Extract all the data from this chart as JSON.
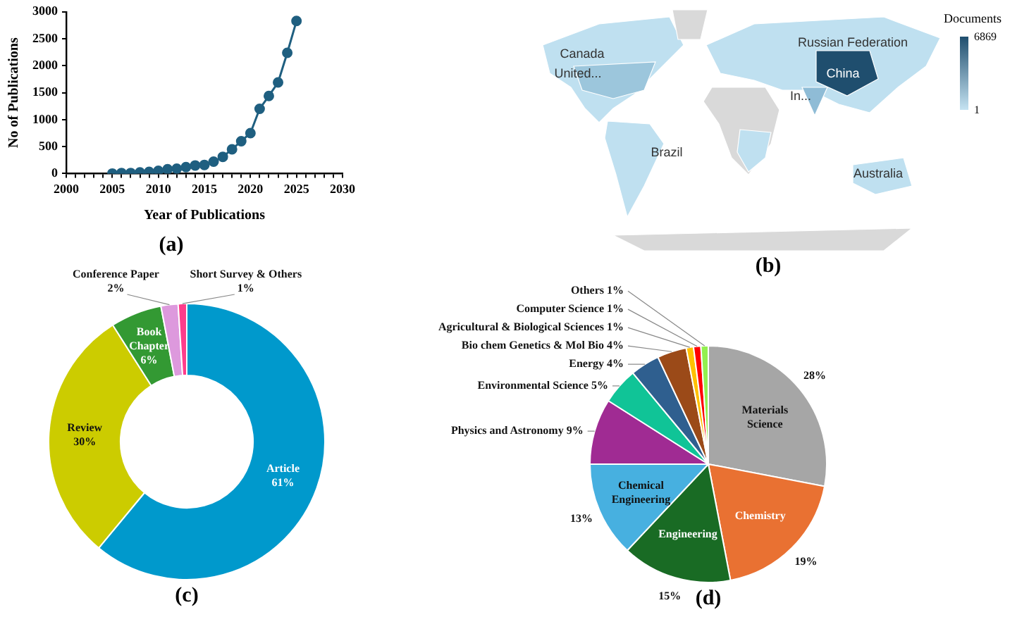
{
  "chart_data": [
    {
      "type": "line",
      "title": "(a)",
      "xlabel": "Year of Publications",
      "ylabel": "No of Publications",
      "x": [
        2005,
        2006,
        2007,
        2008,
        2009,
        2010,
        2011,
        2012,
        2013,
        2014,
        2015,
        2016,
        2017,
        2018,
        2019,
        2020,
        2021,
        2022,
        2023,
        2024,
        2025
      ],
      "series": [
        {
          "color": "#1f5f80",
          "values": [
            0,
            10,
            10,
            20,
            30,
            50,
            80,
            90,
            120,
            150,
            160,
            220,
            310,
            450,
            600,
            750,
            1200,
            1440,
            1690,
            2240,
            2830
          ]
        }
      ],
      "xlim": [
        2000,
        2030
      ],
      "xticks": [
        2000,
        {
          "value": 2001,
          "label": null
        },
        {
          "value": 2002,
          "label": null
        },
        {
          "value": 2003,
          "label": null
        },
        {
          "value": 2004,
          "label": null
        },
        2005,
        {
          "value": 2006,
          "label": null
        },
        {
          "value": 2007,
          "label": null
        },
        {
          "value": 2008,
          "label": null
        },
        {
          "value": 2009,
          "label": null
        },
        2010,
        {
          "value": 2011,
          "label": null
        },
        {
          "value": 2012,
          "label": null
        },
        {
          "value": 2013,
          "label": null
        },
        {
          "value": 2014,
          "label": null
        },
        2015,
        {
          "value": 2016,
          "label": null
        },
        {
          "value": 2017,
          "label": null
        },
        {
          "value": 2018,
          "label": null
        },
        {
          "value": 2019,
          "label": null
        },
        2020,
        {
          "value": 2021,
          "label": null
        },
        {
          "value": 2022,
          "label": null
        },
        {
          "value": 2023,
          "label": null
        },
        {
          "value": 2024,
          "label": null
        },
        2025,
        {
          "value": 2026,
          "label": null
        },
        {
          "value": 2027,
          "label": null
        },
        {
          "value": 2028,
          "label": null
        },
        {
          "value": 2029,
          "label": null
        },
        2030
      ],
      "ylim": [
        0,
        3000
      ],
      "yticks": [
        0,
        500,
        1000,
        1500,
        2000,
        2500,
        3000
      ],
      "marker": "circle",
      "line_style": "solid"
    },
    {
      "type": "other",
      "title": "(b)",
      "legend_title": "Documents",
      "annotations": [
        "Russian Federation",
        "Canada",
        "United...",
        "China",
        "In...",
        "Brazil",
        "Australia",
        "6869",
        "1"
      ]
    },
    {
      "type": "donut",
      "title": "(c)",
      "categories": [
        "Article",
        "Review",
        "Book Chapter",
        "Conference Paper",
        "Short Survey & Others"
      ],
      "values": [
        61,
        30,
        6,
        2,
        1
      ],
      "colors": [
        "#0099cc",
        "#cccc00",
        "#339933",
        "#dd99dd",
        "#ff3d8b"
      ],
      "value_labels": [
        "61%",
        "30%",
        "6%",
        "2%",
        "1%"
      ]
    },
    {
      "type": "pie",
      "title": "(d)",
      "categories": [
        "Materials Science",
        "Chemistry",
        "Engineering",
        "Chemical Engineering",
        "Physics and Astronomy",
        "Environmental Science",
        "Energy",
        "Bio chem Genetics & Mol Bio",
        "Agricultural & Biological Sciences",
        "Computer Science",
        "Others"
      ],
      "values": [
        28,
        19,
        15,
        13,
        9,
        5,
        4,
        4,
        1,
        1,
        1
      ],
      "colors": [
        "#a6a6a6",
        "#e97132",
        "#196b24",
        "#47b0e0",
        "#a02b93",
        "#10c497",
        "#2f5f8f",
        "#9b4a18",
        "#ffc000",
        "#ff0000",
        "#92f04f"
      ],
      "value_labels": [
        "28%",
        "19%",
        "15%",
        "13%",
        "9%",
        "5%",
        "4%",
        "4%",
        "1%",
        "1%",
        "1%"
      ]
    }
  ]
}
